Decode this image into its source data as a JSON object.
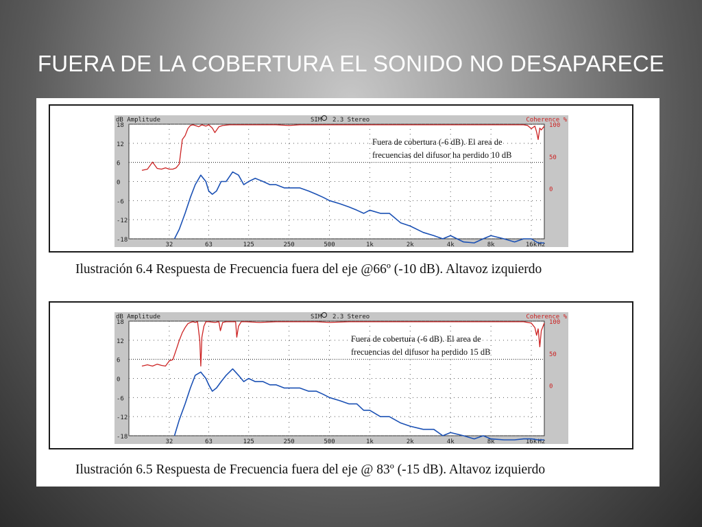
{
  "slide": {
    "title": "FUERA DE LA COBERTURA EL SONIDO NO DESAPARECE"
  },
  "chart_data": [
    {
      "type": "line",
      "header_left": "dB Amplitude",
      "header_center": "SIM",
      "header_version": "2.3 Stereo",
      "header_right": "Coherence %",
      "y_ticks": [
        "18",
        "12",
        "6",
        "0",
        "-6",
        "-12",
        "-18"
      ],
      "ylim": [
        -18,
        18
      ],
      "right_ticks": [
        "100",
        "50",
        "0"
      ],
      "x_ticks": [
        "32",
        "63",
        "125",
        "250",
        "500",
        "1k",
        "2k",
        "4k",
        "8k",
        "16k",
        "Hz"
      ],
      "x_tick_values": [
        32,
        63,
        125,
        250,
        500,
        1000,
        2000,
        4000,
        8000,
        16000
      ],
      "xlim": [
        16,
        20000
      ],
      "annotation": [
        "Fuera de cobertura (-6 dB).  El area de",
        "frecuencias del difusor ha perdido 10 dB"
      ],
      "caption": "Ilustración 6.4 Respuesta de Frecuencia fuera del eje @66º (-10 dB). Altavoz izquierdo",
      "colors": {
        "amplitude": "#1a50b4",
        "coherence": "#cc2222",
        "grid": "#555555",
        "axis_text": "#1c1c1c",
        "coherence_text": "#cc2222"
      },
      "series": [
        {
          "name": "Coherence %",
          "x": [
            20,
            22,
            24,
            26,
            28,
            30,
            32,
            34,
            36,
            38,
            40,
            42,
            44,
            46,
            48,
            50,
            53,
            56,
            60,
            63,
            67,
            70,
            75,
            80,
            90,
            100,
            120,
            150,
            200,
            250,
            300,
            400,
            500,
            700,
            1000,
            1500,
            2000,
            3000,
            4000,
            6000,
            8000,
            10000,
            12000,
            14000,
            15000,
            16000,
            17000,
            17500,
            18000,
            18500,
            19000,
            20000
          ],
          "y": [
            28,
            30,
            41,
            31,
            30,
            32,
            30,
            30,
            32,
            38,
            76,
            82,
            93,
            98,
            99,
            98,
            96,
            99,
            97,
            99,
            94,
            87,
            96,
            98,
            99,
            99,
            99,
            99,
            99,
            98,
            99,
            99,
            99,
            99,
            99,
            99,
            99,
            99,
            99,
            99,
            99,
            99,
            99,
            99,
            98,
            93,
            97,
            88,
            76,
            94,
            91,
            97
          ]
        },
        {
          "name": "Amplitude",
          "x": [
            35,
            38,
            42,
            46,
            50,
            55,
            60,
            63,
            67,
            72,
            78,
            85,
            95,
            105,
            115,
            125,
            140,
            160,
            180,
            200,
            230,
            260,
            300,
            350,
            400,
            450,
            500,
            600,
            700,
            800,
            900,
            1000,
            1200,
            1400,
            1700,
            2000,
            2500,
            3000,
            3500,
            4000,
            5000,
            6000,
            7000,
            8000,
            10000,
            12000,
            14000,
            16000,
            18000,
            20000
          ],
          "y": [
            -18,
            -15,
            -10,
            -5,
            -1,
            2,
            0,
            -3,
            -4,
            -3,
            0,
            0,
            3,
            2,
            -1,
            0,
            1,
            0,
            -1,
            -1,
            -2,
            -2,
            -2,
            -3,
            -4,
            -5,
            -6,
            -7,
            -8,
            -9,
            -10,
            -9,
            -10,
            -10,
            -13,
            -14,
            -16,
            -17,
            -18,
            -17,
            -19,
            -20,
            -18,
            -17,
            -18,
            -19,
            -18,
            -18,
            -20,
            -22
          ]
        }
      ]
    },
    {
      "type": "line",
      "header_left": "dB Amplitude",
      "header_center": "SIM",
      "header_version": "2.3 Stereo",
      "header_right": "Coherence %",
      "y_ticks": [
        "18",
        "12",
        "6",
        "0",
        "-6",
        "-12",
        "-18"
      ],
      "ylim": [
        -18,
        18
      ],
      "right_ticks": [
        "100",
        "50",
        "0"
      ],
      "x_ticks": [
        "32",
        "63",
        "125",
        "250",
        "500",
        "1k",
        "2k",
        "4k",
        "8k",
        "16k",
        "Hz"
      ],
      "x_tick_values": [
        32,
        63,
        125,
        250,
        500,
        1000,
        2000,
        4000,
        8000,
        16000
      ],
      "xlim": [
        16,
        20000
      ],
      "annotation": [
        "Fuera de cobertura (-6 dB).  El area de",
        "frecuencias del difusor ha perdido 15 dB"
      ],
      "caption": "Ilustración 6.5 Respuesta de Frecuencia fuera del eje @ 83º (-15 dB). Altavoz izquierdo",
      "colors": {
        "amplitude": "#1a50b4",
        "coherence": "#cc2222",
        "grid": "#555555",
        "axis_text": "#1c1c1c",
        "coherence_text": "#cc2222"
      },
      "series": [
        {
          "name": "Coherence %",
          "x": [
            20,
            22,
            24,
            26,
            28,
            30,
            32,
            34,
            36,
            38,
            40,
            42,
            44,
            46,
            48,
            50,
            52,
            54,
            55,
            56,
            58,
            60,
            63,
            70,
            75,
            77,
            80,
            85,
            95,
            100,
            102,
            105,
            110,
            120,
            150,
            200,
            300,
            400,
            500,
            700,
            1000,
            1500,
            2000,
            3000,
            4000,
            6000,
            8000,
            10000,
            12000,
            14000,
            16000,
            17000,
            17500,
            18000,
            18500,
            19000,
            20000
          ],
          "y": [
            30,
            32,
            30,
            33,
            31,
            30,
            38,
            40,
            55,
            70,
            82,
            90,
            96,
            98,
            99,
            98,
            99,
            70,
            30,
            75,
            92,
            99,
            99,
            98,
            99,
            85,
            98,
            99,
            99,
            99,
            75,
            92,
            99,
            99,
            98,
            99,
            99,
            99,
            98,
            99,
            99,
            99,
            99,
            99,
            99,
            99,
            99,
            99,
            99,
            99,
            97,
            90,
            78,
            88,
            60,
            85,
            97
          ]
        },
        {
          "name": "Amplitude",
          "x": [
            35,
            38,
            42,
            46,
            50,
            55,
            60,
            63,
            67,
            72,
            78,
            85,
            95,
            105,
            115,
            125,
            140,
            160,
            180,
            200,
            230,
            260,
            300,
            350,
            400,
            450,
            500,
            600,
            700,
            800,
            900,
            1000,
            1200,
            1400,
            1700,
            2000,
            2500,
            3000,
            3500,
            4000,
            5000,
            6000,
            7000,
            8000,
            10000,
            12000,
            14000,
            16000,
            18000,
            20000
          ],
          "y": [
            -18,
            -13,
            -8,
            -3,
            1,
            2,
            0,
            -2,
            -4,
            -3,
            -1,
            1,
            3,
            1,
            -1,
            0,
            -1,
            -1,
            -2,
            -2,
            -3,
            -3,
            -3,
            -4,
            -4,
            -5,
            -6,
            -7,
            -8,
            -8,
            -10,
            -10,
            -12,
            -12,
            -14,
            -15,
            -16,
            -16,
            -18,
            -17,
            -18,
            -19,
            -18,
            -19,
            -20,
            -20,
            -19,
            -19,
            -21,
            -23
          ]
        }
      ]
    }
  ]
}
